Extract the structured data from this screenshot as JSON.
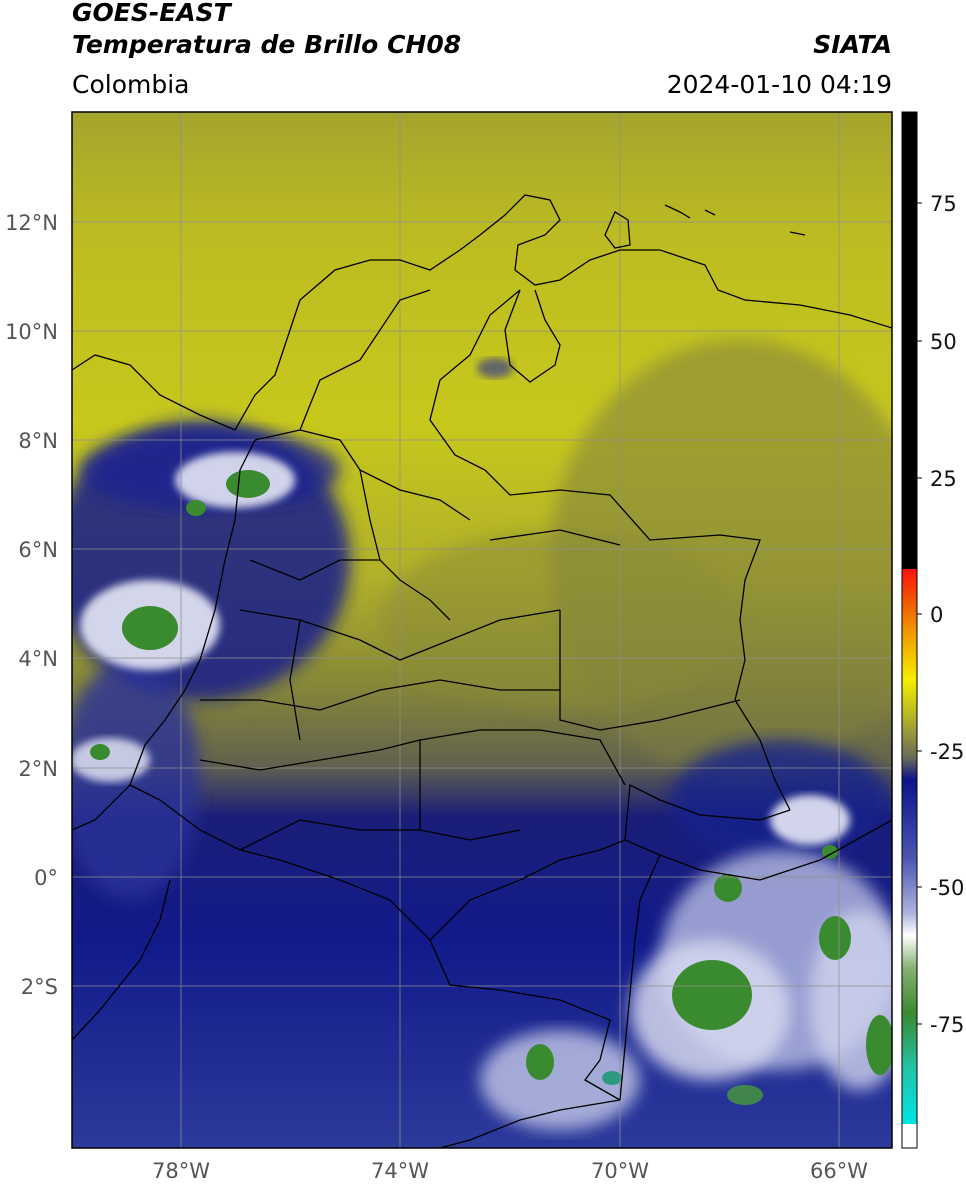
{
  "header": {
    "title_line1": "GOES-EAST",
    "title_line2": "Temperatura de Brillo CH08",
    "brand": "SIATA",
    "region": "Colombia",
    "datetime": "2024-01-10 04:19"
  },
  "map": {
    "lat_labels": [
      "12°N",
      "10°N",
      "8°N",
      "6°N",
      "4°N",
      "2°N",
      "0°",
      "2°S"
    ],
    "lon_labels": [
      "78°W",
      "74°W",
      "70°W",
      "66°W"
    ]
  },
  "colorbar": {
    "tick_labels": [
      "75",
      "50",
      "25",
      "0",
      "-25",
      "-50",
      "-75"
    ],
    "colors": {
      "black": "#000000",
      "red": "#e8141c",
      "orange": "#f08c00",
      "yellow": "#f5ef00",
      "olive": "#9a9a2a",
      "grey": "#6a6a5a",
      "navy": "#0c1488",
      "blue": "#4b55b0",
      "lavender": "#aeb4de",
      "white": "#ffffff",
      "green": "#3a8a30",
      "teal": "#22c4a8",
      "cyan": "#00e5e5"
    }
  }
}
